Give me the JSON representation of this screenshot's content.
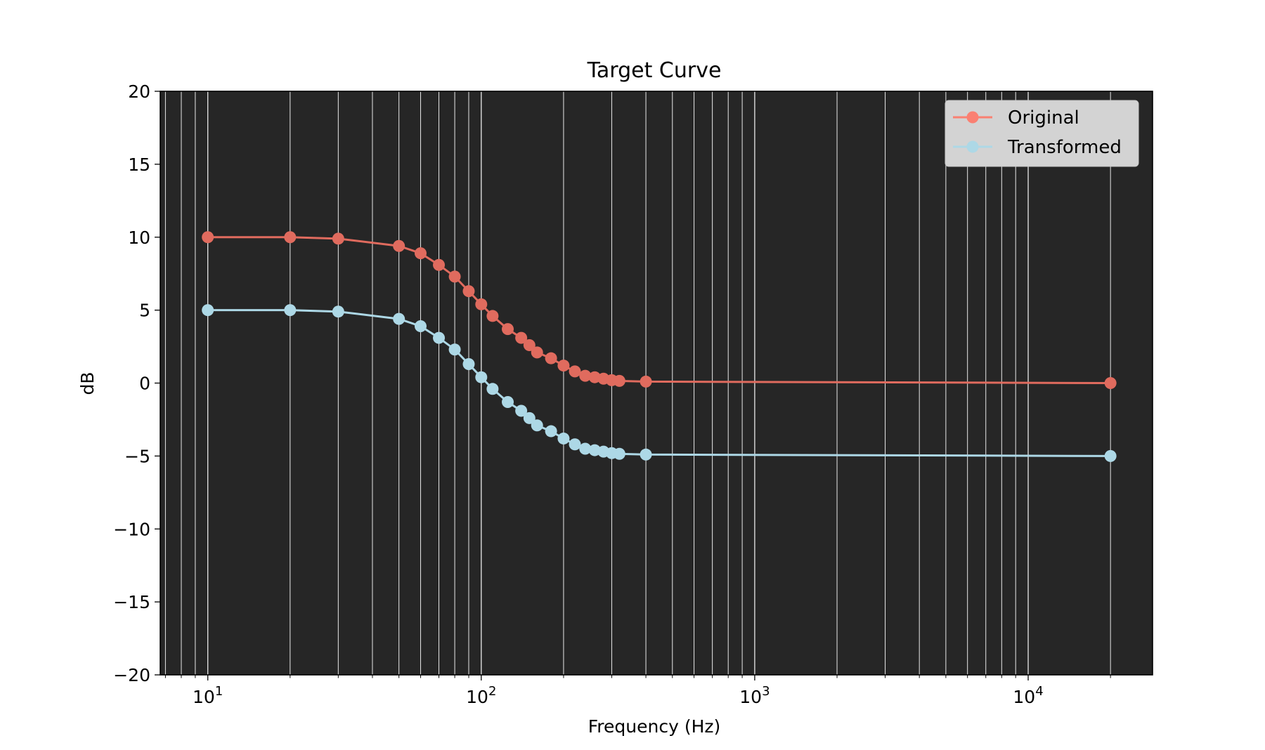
{
  "chart_data": {
    "type": "line",
    "title": "Target Curve",
    "xlabel": "Frequency (Hz)",
    "ylabel": "dB",
    "xscale": "log",
    "xlim": [
      6.7,
      28500
    ],
    "ylim": [
      -20,
      20
    ],
    "x_tick_labels": [
      {
        "value": 10,
        "base": "10",
        "exp": "1"
      },
      {
        "value": 100,
        "base": "10",
        "exp": "2"
      },
      {
        "value": 1000,
        "base": "10",
        "exp": "3"
      },
      {
        "value": 10000,
        "base": "10",
        "exp": "4"
      }
    ],
    "y_ticks": [
      20,
      15,
      10,
      5,
      0,
      -5,
      -10,
      -15,
      -20
    ],
    "y_tick_labels": [
      "20",
      "15",
      "10",
      "5",
      "0",
      "−5",
      "−10",
      "−15",
      "−20"
    ],
    "grid": "vertical major and minor",
    "plot_background": "#262626",
    "legend_position": "top-right",
    "x": [
      10,
      20,
      30,
      50,
      60,
      70,
      80,
      90,
      100,
      110,
      125,
      140,
      150,
      160,
      180,
      200,
      220,
      240,
      260,
      280,
      300,
      320,
      400,
      20000
    ],
    "series": [
      {
        "name": "Original",
        "color": "#fa8072",
        "line_color": "#e06b5e",
        "values": [
          10.0,
          10.0,
          9.9,
          9.4,
          8.9,
          8.1,
          7.3,
          6.3,
          5.4,
          4.6,
          3.7,
          3.1,
          2.6,
          2.1,
          1.7,
          1.2,
          0.8,
          0.5,
          0.4,
          0.3,
          0.2,
          0.15,
          0.1,
          0.0
        ]
      },
      {
        "name": "Transformed",
        "color": "#add8e6",
        "line_color": "#add8e6",
        "values": [
          5.0,
          5.0,
          4.9,
          4.4,
          3.9,
          3.1,
          2.3,
          1.3,
          0.4,
          -0.4,
          -1.3,
          -1.9,
          -2.4,
          -2.9,
          -3.3,
          -3.8,
          -4.2,
          -4.5,
          -4.6,
          -4.7,
          -4.8,
          -4.85,
          -4.9,
          -5.0
        ]
      }
    ]
  }
}
